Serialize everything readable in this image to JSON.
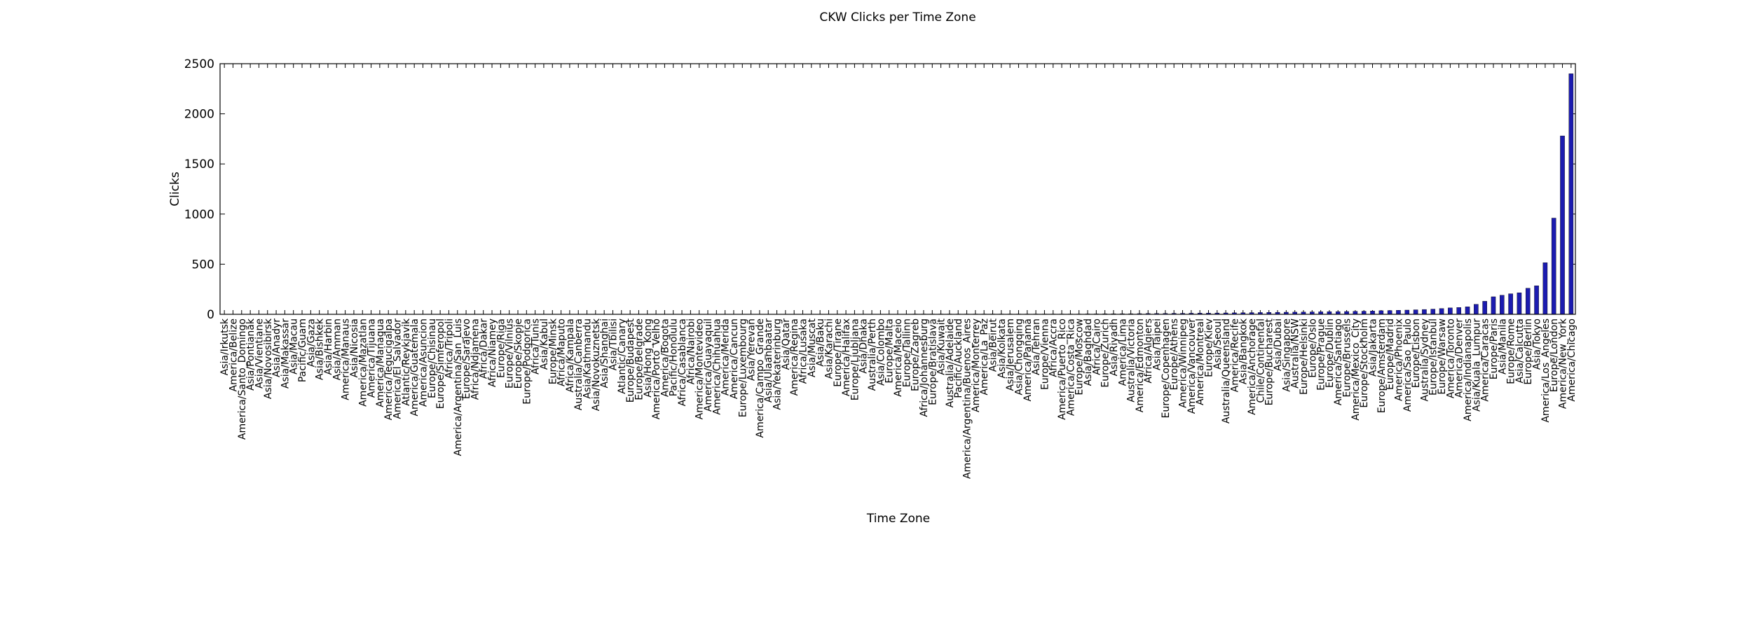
{
  "chart_data": {
    "type": "bar",
    "title": "CKW Clicks per Time Zone",
    "x_label": "Time Zone",
    "y_label": "Clicks",
    "color": "#1c1cb0",
    "categories": [
      "Asia/Irkutsk",
      "America/Belize",
      "America/Santo_Domingo",
      "Asia/Pontianak",
      "Asia/Vientiane",
      "Asia/Novosibirsk",
      "Asia/Anadyr",
      "Asia/Makassar",
      "Asia/Macau",
      "Pacific/Guam",
      "Asia/Gaza",
      "Asia/Bishkek",
      "Asia/Harbin",
      "Asia/Amman",
      "America/Manaus",
      "Asia/Nicosia",
      "America/Mazatlan",
      "America/Tijuana",
      "America/Managua",
      "America/Tegucigalpa",
      "America/El_Salvador",
      "Atlantic/Reykjavik",
      "America/Guatemala",
      "America/Asuncion",
      "Europe/Chisinau",
      "Europe/Simferopol",
      "Africa/Tripoli",
      "America/Argentina/San_Luis",
      "Europe/Sarajevo",
      "Africa/Ndjamena",
      "Africa/Dakar",
      "Africa/Niamey",
      "Europe/Riga",
      "Europe/Vilnius",
      "Europe/Skopje",
      "Europe/Podgorica",
      "Africa/Tunis",
      "Asia/Kabul",
      "Europe/Minsk",
      "Africa/Maputo",
      "Africa/Kampala",
      "Australia/Canberra",
      "Asia/Kathmandu",
      "Asia/Novokuznetsk",
      "Asia/Shanghai",
      "Asia/Tbilisi",
      "Atlantic/Canary",
      "Europe/Budapest",
      "Europe/Belgrade",
      "Asia/Hong_Kong",
      "America/Porto_Velho",
      "America/Bogota",
      "Pacific/Honolulu",
      "Africa/Casablanca",
      "Africa/Nairobi",
      "America/Montevideo",
      "America/Guayaquil",
      "America/Chihuahua",
      "America/Merida",
      "America/Cancun",
      "Europe/Luxembourg",
      "Asia/Yerevan",
      "America/Campo_Grande",
      "Asia/Ulaanbaatar",
      "Asia/Yekaterinburg",
      "Asia/Qatar",
      "America/Regina",
      "Africa/Lusaka",
      "Asia/Muscat",
      "Asia/Baku",
      "Asia/Karachi",
      "Europe/Tirane",
      "America/Halifax",
      "Europe/Ljubljana",
      "Asia/Dhaka",
      "Australia/Perth",
      "Asia/Colombo",
      "Europe/Malta",
      "America/Maceio",
      "Europe/Tallinn",
      "Europe/Zagreb",
      "Africa/Johannesburg",
      "Europe/Bratislava",
      "Asia/Kuwait",
      "Australia/Adelaide",
      "Pacific/Auckland",
      "America/Argentina/Buenos_Aires",
      "America/Monterrey",
      "America/La_Paz",
      "Asia/Beirut",
      "Asia/Kolkata",
      "Asia/Jerusalem",
      "Asia/Chongqing",
      "America/Panama",
      "Asia/Tehran",
      "Europe/Vienna",
      "Africa/Accra",
      "America/Puerto_Rico",
      "America/Costa_Rica",
      "Europe/Moscow",
      "Asia/Baghdad",
      "Africa/Cairo",
      "Europe/Zurich",
      "Asia/Riyadh",
      "America/Lima",
      "Australia/Victoria",
      "America/Edmonton",
      "Africa/Algiers",
      "Asia/Taipei",
      "Europe/Copenhagen",
      "Europe/Athens",
      "America/Winnipeg",
      "America/Vancouver",
      "America/Montreal",
      "Europe/Kiev",
      "Asia/Seoul",
      "Australia/Queensland",
      "America/Recife",
      "Asia/Bangkok",
      "America/Anchorage",
      "Chile/Continental",
      "Europe/Bucharest",
      "Asia/Dubai",
      "Asia/Singapore",
      "Australia/NSW",
      "Europe/Helsinki",
      "Europe/Oslo",
      "Europe/Prague",
      "Europe/Dublin",
      "America/Santiago",
      "Europe/Brussels",
      "America/Mexico_City",
      "Europe/Stockholm",
      "Asia/Jakarta",
      "Europe/Amsterdam",
      "Europe/Madrid",
      "America/Phoenix",
      "America/Sao_Paulo",
      "Europe/Lisbon",
      "Australia/Sydney",
      "Europe/Istanbul",
      "Europe/Warsaw",
      "America/Toronto",
      "America/Denver",
      "America/Indianapolis",
      "Asia/Kuala_Lumpur",
      "America/Caracas",
      "Europe/Paris",
      "Asia/Manila",
      "Europe/Rome",
      "Asia/Calcutta",
      "Europe/Berlin",
      "Asia/Tokyo",
      "America/Los_Angeles",
      "Europe/London",
      "America/New_York",
      "America/Chicago"
    ],
    "values": [
      1,
      1,
      1,
      1,
      1,
      1,
      1,
      1,
      1,
      1,
      1,
      1,
      1,
      1,
      1,
      1,
      1,
      1,
      1,
      1,
      1,
      1,
      1,
      1,
      1,
      1,
      1,
      1,
      1,
      1,
      1,
      1,
      1,
      1,
      1,
      1,
      1,
      1,
      1,
      1,
      1,
      1,
      1,
      1,
      1,
      1,
      1,
      1,
      1,
      1,
      2,
      2,
      2,
      2,
      2,
      2,
      2,
      2,
      2,
      2,
      2,
      2,
      2,
      2,
      2,
      2,
      2,
      2,
      2,
      2,
      2,
      2,
      2,
      2,
      2,
      2,
      2,
      2,
      2,
      2,
      3,
      3,
      3,
      3,
      3,
      3,
      3,
      3,
      3,
      3,
      3,
      3,
      3,
      3,
      3,
      3,
      3,
      3,
      3,
      3,
      4,
      4,
      5,
      5,
      6,
      6,
      7,
      8,
      8,
      9,
      10,
      10,
      11,
      12,
      12,
      13,
      14,
      15,
      16,
      17,
      18,
      19,
      20,
      21,
      22,
      23,
      24,
      25,
      26,
      27,
      28,
      30,
      31,
      33,
      36,
      38,
      40,
      42,
      45,
      48,
      52,
      58,
      64,
      68,
      75,
      100,
      130,
      175,
      190,
      205,
      215,
      260,
      285,
      515,
      960,
      1780,
      2400
    ],
    "ylim": [
      0,
      2500
    ],
    "yticks": [
      0,
      500,
      1000,
      1500,
      2000,
      2500
    ]
  }
}
